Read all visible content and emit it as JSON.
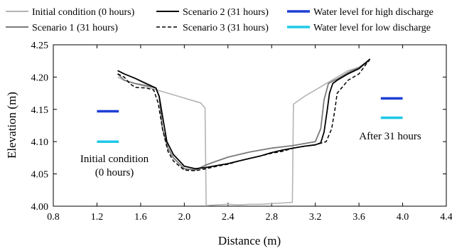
{
  "chart_data": {
    "type": "line",
    "xlabel": "Distance (m)",
    "ylabel": "Elevation (m)",
    "xlim": [
      0.8,
      4.4
    ],
    "ylim": [
      4.0,
      4.25
    ],
    "xticks": [
      "0.8",
      "1.2",
      "1.6",
      "2.0",
      "2.4",
      "2.8",
      "3.2",
      "3.6",
      "4.0",
      "4.4"
    ],
    "yticks": [
      "4.00",
      "4.05",
      "4.10",
      "4.15",
      "4.20",
      "4.25"
    ],
    "grid": false,
    "legend_position": "top",
    "legend": [
      {
        "label": "Initial condition (0 hours)",
        "color": "#b4b4b4",
        "dash": "solid"
      },
      {
        "label": "Scenario 1 (31 hours)",
        "color": "#7a7a7a",
        "dash": "solid"
      },
      {
        "label": "Scenario 2 (31 hours)",
        "color": "#000000",
        "dash": "solid"
      },
      {
        "label": "Scenario 3 (31 hours)",
        "color": "#000000",
        "dash": "dashed"
      },
      {
        "label": "Water level for high discharge",
        "color": "#1d3fd6",
        "dash": "solid"
      },
      {
        "label": "Water level for low discharge",
        "color": "#1fc8e8",
        "dash": "solid"
      }
    ],
    "series": [
      {
        "name": "Initial condition (0 hours)",
        "color": "#b4b4b4",
        "dash": "solid",
        "x": [
          1.39,
          1.45,
          1.55,
          1.65,
          1.75,
          1.85,
          1.95,
          2.05,
          2.15,
          2.19,
          2.2,
          2.3,
          2.4,
          2.5,
          2.6,
          2.7,
          2.8,
          2.9,
          2.99,
          3.0,
          3.1,
          3.2,
          3.3,
          3.4,
          3.5,
          3.6,
          3.7
        ],
        "y": [
          4.2,
          4.195,
          4.19,
          4.185,
          4.18,
          4.175,
          4.17,
          4.165,
          4.16,
          4.152,
          4.001,
          4.002,
          4.003,
          4.002,
          4.003,
          4.003,
          4.004,
          4.005,
          4.006,
          4.158,
          4.17,
          4.18,
          4.19,
          4.2,
          4.21,
          4.215,
          4.225
        ]
      },
      {
        "name": "Scenario 1 (31 hours)",
        "color": "#7a7a7a",
        "dash": "solid",
        "x": [
          1.39,
          1.45,
          1.55,
          1.65,
          1.74,
          1.77,
          1.8,
          1.85,
          1.9,
          2.0,
          2.1,
          2.2,
          2.3,
          2.4,
          2.5,
          2.6,
          2.7,
          2.8,
          2.9,
          3.0,
          3.1,
          3.2,
          3.25,
          3.28,
          3.32,
          3.35,
          3.4,
          3.5,
          3.6,
          3.7
        ],
        "y": [
          4.205,
          4.195,
          4.19,
          4.187,
          4.183,
          4.17,
          4.12,
          4.09,
          4.075,
          4.058,
          4.056,
          4.064,
          4.07,
          4.076,
          4.08,
          4.084,
          4.087,
          4.09,
          4.092,
          4.094,
          4.097,
          4.1,
          4.12,
          4.165,
          4.19,
          4.193,
          4.197,
          4.207,
          4.215,
          4.227
        ]
      },
      {
        "name": "Scenario 2 (31 hours)",
        "color": "#000000",
        "dash": "solid",
        "x": [
          1.39,
          1.45,
          1.55,
          1.65,
          1.74,
          1.77,
          1.8,
          1.84,
          1.9,
          2.0,
          2.1,
          2.2,
          2.3,
          2.4,
          2.5,
          2.6,
          2.7,
          2.8,
          2.9,
          3.0,
          3.1,
          3.2,
          3.25,
          3.28,
          3.31,
          3.33,
          3.36,
          3.4,
          3.5,
          3.6,
          3.7
        ],
        "y": [
          4.21,
          4.205,
          4.198,
          4.19,
          4.183,
          4.17,
          4.14,
          4.1,
          4.08,
          4.062,
          4.058,
          4.06,
          4.063,
          4.066,
          4.07,
          4.074,
          4.078,
          4.083,
          4.087,
          4.09,
          4.093,
          4.095,
          4.098,
          4.115,
          4.15,
          4.175,
          4.19,
          4.195,
          4.205,
          4.213,
          4.228
        ]
      },
      {
        "name": "Scenario 3 (31 hours)",
        "color": "#000000",
        "dash": "dashed",
        "x": [
          1.39,
          1.45,
          1.5,
          1.55,
          1.65,
          1.72,
          1.76,
          1.8,
          1.85,
          1.9,
          2.0,
          2.1,
          2.2,
          2.3,
          2.4,
          2.5,
          2.6,
          2.7,
          2.8,
          2.9,
          3.0,
          3.1,
          3.2,
          3.3,
          3.35,
          3.38,
          3.4,
          3.45,
          3.5,
          3.6,
          3.7
        ],
        "y": [
          4.205,
          4.2,
          4.19,
          4.184,
          4.183,
          4.18,
          4.16,
          4.12,
          4.085,
          4.07,
          4.056,
          4.055,
          4.058,
          4.062,
          4.065,
          4.07,
          4.074,
          4.078,
          4.082,
          4.085,
          4.09,
          4.093,
          4.095,
          4.1,
          4.12,
          4.15,
          4.175,
          4.185,
          4.195,
          4.205,
          4.228
        ]
      }
    ],
    "water_levels": [
      {
        "label": "Water level for high discharge",
        "color": "#1d3fd6",
        "segments": [
          {
            "x": [
              1.2,
              1.4
            ],
            "y": 4.147
          },
          {
            "x": [
              3.8,
              4.0
            ],
            "y": 4.167
          }
        ]
      },
      {
        "label": "Water level for low discharge",
        "color": "#1fc8e8",
        "segments": [
          {
            "x": [
              1.2,
              1.4
            ],
            "y": 4.1
          },
          {
            "x": [
              3.8,
              4.0
            ],
            "y": 4.137
          }
        ]
      }
    ],
    "annotations": {
      "initial_line1": "Initial condition",
      "initial_line2": "(0 hours)",
      "after": "After 31 hours"
    }
  }
}
